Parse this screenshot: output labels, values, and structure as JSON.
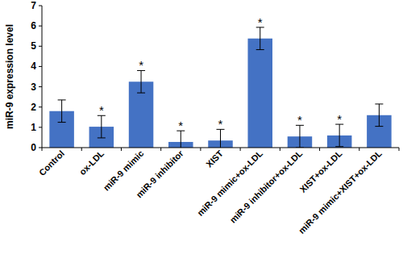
{
  "chart_data": {
    "type": "bar",
    "y_label": "miR-9 expression level",
    "categories": [
      "Control",
      "ox-LDL",
      "miR-9 mimic",
      "miR-9 inhibitor",
      "XIST",
      "miR-9 mimic+ox-LDL",
      "miR-9 inhibitor+ox-LDL",
      "XIST+ox-LDL",
      "miR-9 mimic+XIST+ox-LDL"
    ],
    "values": [
      1.8,
      1.03,
      3.25,
      0.28,
      0.35,
      5.38,
      0.55,
      0.6,
      1.6
    ],
    "errors": [
      0.55,
      0.55,
      0.55,
      0.55,
      0.55,
      0.55,
      0.55,
      0.55,
      0.55
    ],
    "annotations": [
      null,
      "*",
      "*",
      "*",
      "*",
      "*",
      "*",
      "*",
      null
    ],
    "color": "#4472c4",
    "ylim": [
      0,
      7
    ],
    "yticks": [
      0,
      1,
      2,
      3,
      4,
      5,
      6,
      7
    ],
    "grid": false
  }
}
